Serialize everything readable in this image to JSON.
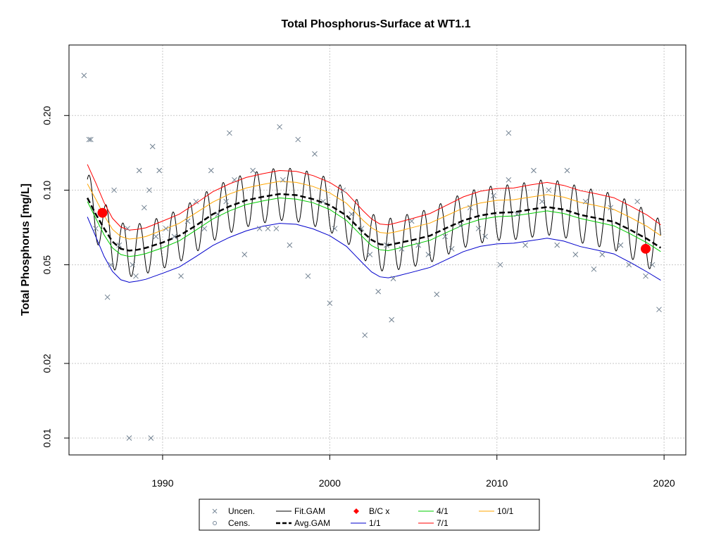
{
  "chart_data": {
    "type": "scatter",
    "title": "Total Phosphorus-Surface at WT1.1",
    "xlabel": "",
    "ylabel": "Total Phosphorus [mg/L]",
    "y_scale": "log",
    "xlim": [
      1984.4,
      2021.3
    ],
    "ylim": [
      0.00855,
      0.385
    ],
    "x_ticks": [
      1990,
      2000,
      2010,
      2020
    ],
    "x_tick_labels": [
      "1990",
      "2000",
      "2010",
      "2020"
    ],
    "y_ticks": [
      0.01,
      0.02,
      0.05,
      0.1,
      0.2
    ],
    "y_tick_labels": [
      "0.01",
      "0.02",
      "0.05",
      "0.10",
      "0.20"
    ],
    "grid": true,
    "legend_position": "bottom",
    "legend": [
      {
        "label": "Uncen.",
        "kind": "x-marker",
        "color": "#778899"
      },
      {
        "label": "Cens.",
        "kind": "circle-marker",
        "color": "#778899"
      },
      {
        "label": "Fit.GAM",
        "kind": "line",
        "color": "#000000"
      },
      {
        "label": "Avg.GAM",
        "kind": "dashed-line",
        "color": "#000000"
      },
      {
        "label": "B/C x",
        "kind": "diamond-marker",
        "color": "#ff0000"
      },
      {
        "label": "1/1",
        "kind": "line",
        "color": "#0000cc"
      },
      {
        "label": "4/1",
        "kind": "line",
        "color": "#00cc00"
      },
      {
        "label": "7/1",
        "kind": "line",
        "color": "#ff0000"
      },
      {
        "label": "10/1",
        "kind": "line",
        "color": "#ffa500"
      }
    ],
    "series": [
      {
        "name": "Avg.GAM",
        "x": [
          1985.5,
          1986,
          1986.5,
          1987,
          1987.5,
          1988,
          1988.5,
          1989,
          1990,
          1991,
          1992,
          1993,
          1994,
          1995,
          1996,
          1997,
          1998,
          1999,
          2000,
          2001,
          2002,
          2002.5,
          2003,
          2003.5,
          2004,
          2005,
          2006,
          2007,
          2008,
          2009,
          2010,
          2011,
          2012,
          2013,
          2014,
          2015,
          2016,
          2017,
          2018,
          2019,
          2019.8
        ],
        "y": [
          0.093,
          0.08,
          0.07,
          0.062,
          0.058,
          0.057,
          0.0575,
          0.0585,
          0.0615,
          0.0655,
          0.072,
          0.08,
          0.086,
          0.091,
          0.094,
          0.0965,
          0.0955,
          0.092,
          0.087,
          0.079,
          0.0675,
          0.063,
          0.0605,
          0.06,
          0.061,
          0.063,
          0.0655,
          0.0705,
          0.0755,
          0.079,
          0.081,
          0.0815,
          0.0835,
          0.0855,
          0.0835,
          0.0795,
          0.077,
          0.0745,
          0.069,
          0.0635,
          0.0585
        ]
      },
      {
        "name": "4/1",
        "x": [
          1985.5,
          1986,
          1986.5,
          1987,
          1987.5,
          1988,
          1988.5,
          1989,
          1990,
          1991,
          1992,
          1993,
          1994,
          1995,
          1996,
          1997,
          1998,
          1999,
          2000,
          2001,
          2002,
          2002.5,
          2003,
          2003.5,
          2004,
          2005,
          2006,
          2007,
          2008,
          2009,
          2010,
          2011,
          2012,
          2013,
          2014,
          2015,
          2016,
          2017,
          2018,
          2019,
          2019.8
        ],
        "y": [
          0.09,
          0.077,
          0.066,
          0.0585,
          0.055,
          0.054,
          0.0545,
          0.0555,
          0.0585,
          0.0625,
          0.069,
          0.0765,
          0.0825,
          0.0875,
          0.0905,
          0.093,
          0.092,
          0.089,
          0.0835,
          0.0755,
          0.0645,
          0.0598,
          0.0575,
          0.057,
          0.058,
          0.0603,
          0.0628,
          0.0675,
          0.0725,
          0.0762,
          0.0782,
          0.0787,
          0.0805,
          0.0825,
          0.0805,
          0.0768,
          0.0743,
          0.0718,
          0.0665,
          0.0612,
          0.0565
        ]
      },
      {
        "name": "10/1",
        "x": [
          1985.5,
          1986,
          1986.5,
          1987,
          1987.5,
          1988,
          1988.5,
          1989,
          1990,
          1991,
          1992,
          1993,
          1994,
          1995,
          1996,
          1997,
          1998,
          1999,
          2000,
          2001,
          2002,
          2002.5,
          2003,
          2003.5,
          2004,
          2005,
          2006,
          2007,
          2008,
          2009,
          2010,
          2011,
          2012,
          2013,
          2014,
          2015,
          2016,
          2017,
          2018,
          2019,
          2019.8
        ],
        "y": [
          0.106,
          0.092,
          0.079,
          0.0695,
          0.065,
          0.0635,
          0.064,
          0.065,
          0.069,
          0.0735,
          0.081,
          0.0895,
          0.0965,
          0.102,
          0.1055,
          0.1085,
          0.1075,
          0.1035,
          0.0975,
          0.0885,
          0.0755,
          0.0705,
          0.0675,
          0.067,
          0.068,
          0.0708,
          0.0737,
          0.079,
          0.0848,
          0.0887,
          0.091,
          0.0915,
          0.0937,
          0.096,
          0.0937,
          0.0892,
          0.0865,
          0.0836,
          0.0775,
          0.0713,
          0.0655
        ]
      },
      {
        "name": "7/1",
        "x": [
          1985.5,
          1986,
          1986.5,
          1987,
          1987.5,
          1988,
          1988.5,
          1989,
          1990,
          1991,
          1992,
          1993,
          1994,
          1995,
          1996,
          1997,
          1998,
          1999,
          2000,
          2001,
          2002,
          2002.5,
          2003,
          2003.5,
          2004,
          2005,
          2006,
          2007,
          2008,
          2009,
          2010,
          2011,
          2012,
          2013,
          2014,
          2015,
          2016,
          2017,
          2018,
          2019,
          2019.8
        ],
        "y": [
          0.127,
          0.107,
          0.089,
          0.077,
          0.071,
          0.069,
          0.0695,
          0.0705,
          0.075,
          0.08,
          0.0885,
          0.0985,
          0.106,
          0.1125,
          0.1165,
          0.12,
          0.119,
          0.1145,
          0.1075,
          0.0975,
          0.0825,
          0.0765,
          0.073,
          0.0725,
          0.0738,
          0.077,
          0.0805,
          0.087,
          0.094,
          0.099,
          0.1015,
          0.102,
          0.105,
          0.1075,
          0.1045,
          0.0995,
          0.0965,
          0.0932,
          0.0862,
          0.0792,
          0.0725
        ]
      },
      {
        "name": "1/1",
        "x": [
          1985.5,
          1986,
          1986.5,
          1987,
          1987.5,
          1988,
          1988.5,
          1989,
          1990,
          1991,
          1992,
          1993,
          1994,
          1995,
          1996,
          1997,
          1998,
          1999,
          2000,
          2001,
          2002,
          2002.5,
          2003,
          2003.5,
          2004,
          2005,
          2006,
          2007,
          2008,
          2009,
          2010,
          2011,
          2012,
          2013,
          2014,
          2015,
          2016,
          2017,
          2018,
          2019,
          2019.8
        ],
        "y": [
          0.078,
          0.065,
          0.054,
          0.047,
          0.0435,
          0.0425,
          0.043,
          0.0437,
          0.0462,
          0.049,
          0.054,
          0.0598,
          0.0645,
          0.0685,
          0.0715,
          0.0735,
          0.0728,
          0.0698,
          0.0655,
          0.0593,
          0.0505,
          0.0468,
          0.0447,
          0.0443,
          0.045,
          0.0468,
          0.0488,
          0.0525,
          0.0565,
          0.0593,
          0.0607,
          0.0611,
          0.0625,
          0.064,
          0.0623,
          0.0592,
          0.0573,
          0.0553,
          0.051,
          0.0467,
          0.0433
        ]
      },
      {
        "name": "B/C x",
        "x": [
          1986.4,
          2018.9
        ],
        "y": [
          0.081,
          0.058
        ]
      },
      {
        "name": "Uncen.",
        "x": [
          1985.3,
          1985.6,
          1985.7,
          1986.0,
          1986.3,
          1986.7,
          1986.9,
          1987.1,
          1987.4,
          1987.9,
          1988.2,
          1988.4,
          1988.6,
          1988.9,
          1989.2,
          1989.4,
          1989.6,
          1989.8,
          1990.2,
          1990.7,
          1991.1,
          1991.5,
          1992.0,
          1992.5,
          1992.9,
          1993.3,
          1993.8,
          1994.3,
          1994.9,
          1995.4,
          1995.8,
          1996.3,
          1996.8,
          1997.2,
          1997.6,
          1998.1,
          1998.7,
          1999.1,
          1999.6,
          2000.0,
          2000.3,
          2000.8,
          2001.3,
          2001.9,
          2002.4,
          2002.9,
          2003.4,
          2003.8,
          2004.3,
          2004.9,
          2005.3,
          2005.9,
          2006.4,
          2006.9,
          2007.3,
          2007.8,
          2008.4,
          2008.9,
          2009.3,
          2009.8,
          2010.2,
          2010.7,
          2011.2,
          2011.7,
          2012.2,
          2012.7,
          2013.1,
          2013.6,
          2014.2,
          2014.7,
          2015.3,
          2015.8,
          2016.3,
          2016.8,
          2017.4,
          2017.9,
          2018.4,
          2018.9,
          2019.3,
          2019.7,
          1988.0,
          1989.3,
          1997.0,
          1994.0,
          2002.1,
          2003.7,
          2010.7
        ],
        "y": [
          0.29,
          0.16,
          0.16,
          0.07,
          0.082,
          0.037,
          0.05,
          0.1,
          0.06,
          0.07,
          0.05,
          0.045,
          0.12,
          0.085,
          0.1,
          0.15,
          0.065,
          0.12,
          0.07,
          0.065,
          0.045,
          0.075,
          0.09,
          0.07,
          0.12,
          0.08,
          0.09,
          0.11,
          0.055,
          0.12,
          0.07,
          0.07,
          0.07,
          0.11,
          0.06,
          0.16,
          0.045,
          0.14,
          0.09,
          0.035,
          0.07,
          0.1,
          0.08,
          0.07,
          0.055,
          0.039,
          0.06,
          0.044,
          0.058,
          0.075,
          0.06,
          0.055,
          0.038,
          0.065,
          0.058,
          0.072,
          0.085,
          0.07,
          0.065,
          0.095,
          0.05,
          0.11,
          0.08,
          0.06,
          0.12,
          0.09,
          0.1,
          0.06,
          0.12,
          0.055,
          0.09,
          0.048,
          0.055,
          0.085,
          0.06,
          0.05,
          0.09,
          0.045,
          0.05,
          0.033,
          0.01,
          0.01,
          0.18,
          0.17,
          0.026,
          0.03,
          0.17
        ]
      },
      {
        "name": "Cens.",
        "x": [],
        "y": []
      }
    ]
  }
}
